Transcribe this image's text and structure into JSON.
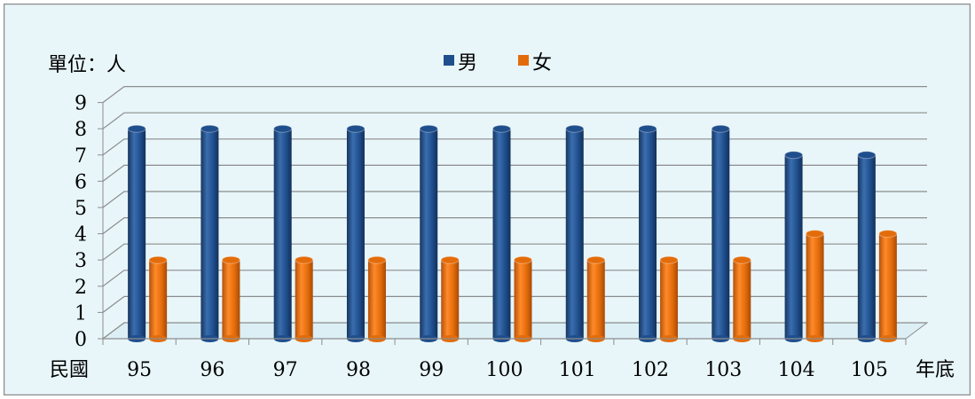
{
  "chart_data": {
    "type": "bar",
    "unit_label": "單位：人",
    "x_prefix": "民國",
    "x_suffix": "年底",
    "categories": [
      "95",
      "96",
      "97",
      "98",
      "99",
      "100",
      "101",
      "102",
      "103",
      "104",
      "105"
    ],
    "series": [
      {
        "name": "男",
        "values": [
          8,
          8,
          8,
          8,
          8,
          8,
          8,
          8,
          8,
          7,
          7
        ],
        "color": "#1f4e8c"
      },
      {
        "name": "女",
        "values": [
          3,
          3,
          3,
          3,
          3,
          3,
          3,
          3,
          3,
          4,
          4
        ],
        "color": "#e36c0a"
      }
    ],
    "y_ticks": [
      "0",
      "1",
      "2",
      "3",
      "4",
      "5",
      "6",
      "7",
      "8",
      "9"
    ],
    "ylim": [
      0,
      9
    ],
    "grid": true,
    "legend_position": "top-center",
    "background_color": "#e8f6fa",
    "border_color": "#8c8c8c"
  }
}
